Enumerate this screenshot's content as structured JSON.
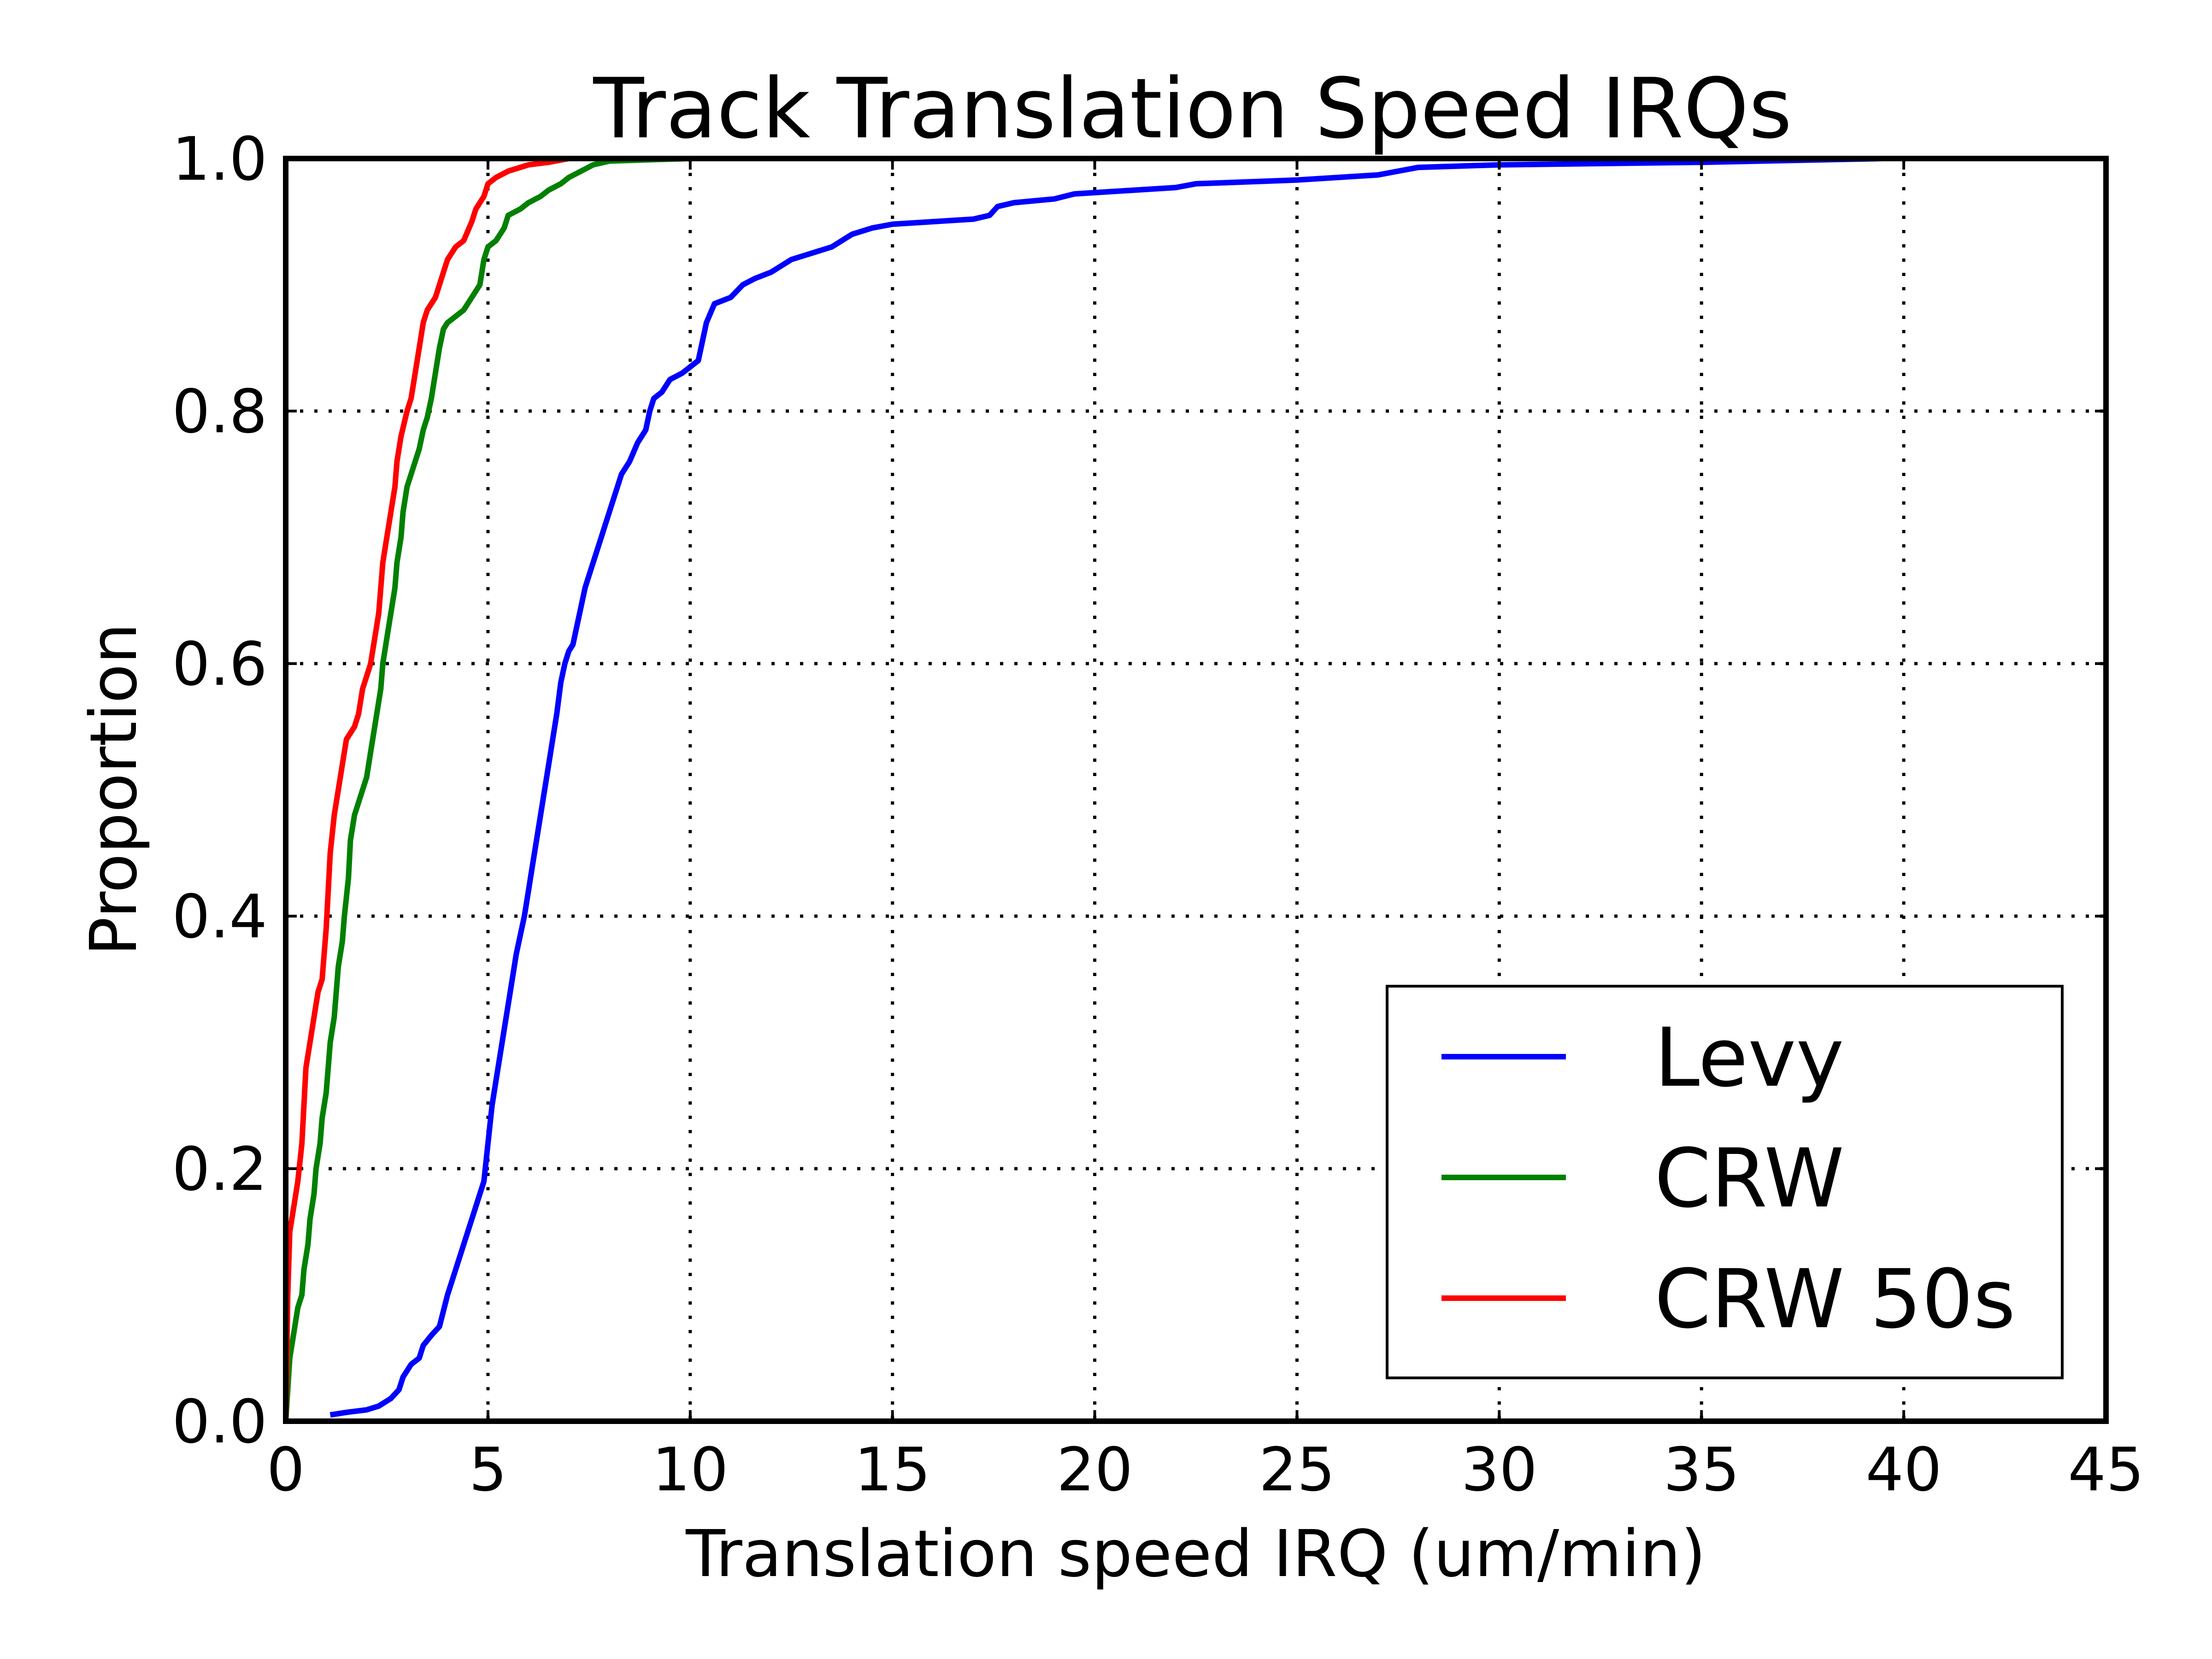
{
  "chart_data": {
    "type": "line",
    "title": "Track Translation Speed IRQs",
    "xlabel": "Translation speed IRQ (um/min)",
    "ylabel": "Proportion",
    "xlim": [
      0,
      45
    ],
    "ylim": [
      0,
      1.0
    ],
    "xticks": [
      0,
      5,
      10,
      15,
      20,
      25,
      30,
      35,
      40,
      45
    ],
    "xtick_labels": [
      "0",
      "5",
      "10",
      "15",
      "20",
      "25",
      "30",
      "35",
      "40",
      "45"
    ],
    "yticks": [
      0,
      0.2,
      0.4,
      0.6,
      0.8,
      1.0
    ],
    "ytick_labels": [
      "0.0",
      "0.2",
      "0.4",
      "0.6",
      "0.8",
      "1.0"
    ],
    "grid": true,
    "legend_position": "bottom-right",
    "series": [
      {
        "name": "Levy",
        "color": "#0000ff",
        "points": [
          [
            1.1,
            0.005
          ],
          [
            1.5,
            0.007
          ],
          [
            2.0,
            0.009
          ],
          [
            2.3,
            0.012
          ],
          [
            2.6,
            0.018
          ],
          [
            2.8,
            0.025
          ],
          [
            2.9,
            0.035
          ],
          [
            3.1,
            0.045
          ],
          [
            3.3,
            0.05
          ],
          [
            3.4,
            0.06
          ],
          [
            3.6,
            0.068
          ],
          [
            3.8,
            0.075
          ],
          [
            4.0,
            0.1
          ],
          [
            4.2,
            0.12
          ],
          [
            4.4,
            0.14
          ],
          [
            4.6,
            0.16
          ],
          [
            4.8,
            0.18
          ],
          [
            4.9,
            0.19
          ],
          [
            5.0,
            0.22
          ],
          [
            5.1,
            0.25
          ],
          [
            5.2,
            0.27
          ],
          [
            5.3,
            0.29
          ],
          [
            5.4,
            0.31
          ],
          [
            5.5,
            0.33
          ],
          [
            5.6,
            0.35
          ],
          [
            5.7,
            0.37
          ],
          [
            5.8,
            0.385
          ],
          [
            5.9,
            0.4
          ],
          [
            6.0,
            0.42
          ],
          [
            6.1,
            0.44
          ],
          [
            6.2,
            0.46
          ],
          [
            6.3,
            0.48
          ],
          [
            6.4,
            0.5
          ],
          [
            6.5,
            0.52
          ],
          [
            6.6,
            0.54
          ],
          [
            6.7,
            0.56
          ],
          [
            6.8,
            0.585
          ],
          [
            6.9,
            0.6
          ],
          [
            7.0,
            0.61
          ],
          [
            7.1,
            0.615
          ],
          [
            7.2,
            0.63
          ],
          [
            7.3,
            0.645
          ],
          [
            7.4,
            0.66
          ],
          [
            7.5,
            0.67
          ],
          [
            7.6,
            0.68
          ],
          [
            7.7,
            0.69
          ],
          [
            7.8,
            0.7
          ],
          [
            7.9,
            0.71
          ],
          [
            8.0,
            0.72
          ],
          [
            8.1,
            0.73
          ],
          [
            8.2,
            0.74
          ],
          [
            8.3,
            0.75
          ],
          [
            8.5,
            0.76
          ],
          [
            8.7,
            0.775
          ],
          [
            8.9,
            0.785
          ],
          [
            9.0,
            0.8
          ],
          [
            9.1,
            0.81
          ],
          [
            9.3,
            0.815
          ],
          [
            9.5,
            0.825
          ],
          [
            9.8,
            0.83
          ],
          [
            10.0,
            0.835
          ],
          [
            10.2,
            0.84
          ],
          [
            10.4,
            0.87
          ],
          [
            10.6,
            0.885
          ],
          [
            11.0,
            0.89
          ],
          [
            11.3,
            0.9
          ],
          [
            11.6,
            0.905
          ],
          [
            12.0,
            0.91
          ],
          [
            12.5,
            0.92
          ],
          [
            13.0,
            0.925
          ],
          [
            13.5,
            0.93
          ],
          [
            14.0,
            0.94
          ],
          [
            14.5,
            0.945
          ],
          [
            15.0,
            0.948
          ],
          [
            16.0,
            0.95
          ],
          [
            17.0,
            0.952
          ],
          [
            17.4,
            0.955
          ],
          [
            17.6,
            0.962
          ],
          [
            18.0,
            0.965
          ],
          [
            19.0,
            0.968
          ],
          [
            19.5,
            0.972
          ],
          [
            21.0,
            0.975
          ],
          [
            22.0,
            0.977
          ],
          [
            22.5,
            0.98
          ],
          [
            25.0,
            0.983
          ],
          [
            27.0,
            0.987
          ],
          [
            28.0,
            0.993
          ],
          [
            30.0,
            0.995
          ],
          [
            35.0,
            0.997
          ],
          [
            39.5,
            1.0
          ]
        ]
      },
      {
        "name": "CRW",
        "color": "#008000",
        "points": [
          [
            0,
            0
          ],
          [
            0.1,
            0.05
          ],
          [
            0.2,
            0.07
          ],
          [
            0.3,
            0.09
          ],
          [
            0.4,
            0.1
          ],
          [
            0.45,
            0.12
          ],
          [
            0.55,
            0.14
          ],
          [
            0.6,
            0.16
          ],
          [
            0.7,
            0.18
          ],
          [
            0.75,
            0.2
          ],
          [
            0.85,
            0.22
          ],
          [
            0.9,
            0.24
          ],
          [
            1.0,
            0.26
          ],
          [
            1.05,
            0.28
          ],
          [
            1.1,
            0.3
          ],
          [
            1.2,
            0.32
          ],
          [
            1.25,
            0.34
          ],
          [
            1.3,
            0.36
          ],
          [
            1.4,
            0.38
          ],
          [
            1.45,
            0.4
          ],
          [
            1.55,
            0.43
          ],
          [
            1.6,
            0.46
          ],
          [
            1.7,
            0.48
          ],
          [
            1.8,
            0.49
          ],
          [
            1.9,
            0.5
          ],
          [
            2.0,
            0.51
          ],
          [
            2.1,
            0.53
          ],
          [
            2.2,
            0.55
          ],
          [
            2.3,
            0.57
          ],
          [
            2.35,
            0.58
          ],
          [
            2.4,
            0.6
          ],
          [
            2.5,
            0.62
          ],
          [
            2.6,
            0.64
          ],
          [
            2.7,
            0.66
          ],
          [
            2.75,
            0.68
          ],
          [
            2.85,
            0.7
          ],
          [
            2.9,
            0.72
          ],
          [
            3.0,
            0.74
          ],
          [
            3.1,
            0.75
          ],
          [
            3.2,
            0.76
          ],
          [
            3.3,
            0.77
          ],
          [
            3.4,
            0.785
          ],
          [
            3.5,
            0.795
          ],
          [
            3.6,
            0.81
          ],
          [
            3.7,
            0.83
          ],
          [
            3.8,
            0.85
          ],
          [
            3.9,
            0.865
          ],
          [
            4.0,
            0.87
          ],
          [
            4.2,
            0.875
          ],
          [
            4.4,
            0.88
          ],
          [
            4.6,
            0.89
          ],
          [
            4.8,
            0.9
          ],
          [
            4.9,
            0.92
          ],
          [
            5.0,
            0.93
          ],
          [
            5.2,
            0.935
          ],
          [
            5.4,
            0.945
          ],
          [
            5.5,
            0.955
          ],
          [
            5.8,
            0.96
          ],
          [
            6.0,
            0.965
          ],
          [
            6.3,
            0.97
          ],
          [
            6.5,
            0.975
          ],
          [
            6.8,
            0.98
          ],
          [
            7.0,
            0.985
          ],
          [
            7.3,
            0.99
          ],
          [
            7.6,
            0.995
          ],
          [
            8.0,
            0.998
          ],
          [
            10.0,
            1.0
          ]
        ]
      },
      {
        "name": "CRW 50s",
        "color": "#ff0000",
        "points": [
          [
            0,
            0
          ],
          [
            0.05,
            0.1
          ],
          [
            0.1,
            0.15
          ],
          [
            0.2,
            0.17
          ],
          [
            0.3,
            0.19
          ],
          [
            0.4,
            0.22
          ],
          [
            0.45,
            0.25
          ],
          [
            0.5,
            0.28
          ],
          [
            0.6,
            0.3
          ],
          [
            0.7,
            0.32
          ],
          [
            0.8,
            0.34
          ],
          [
            0.9,
            0.35
          ],
          [
            0.95,
            0.37
          ],
          [
            1.0,
            0.39
          ],
          [
            1.05,
            0.42
          ],
          [
            1.1,
            0.45
          ],
          [
            1.2,
            0.48
          ],
          [
            1.3,
            0.5
          ],
          [
            1.4,
            0.52
          ],
          [
            1.5,
            0.54
          ],
          [
            1.7,
            0.55
          ],
          [
            1.8,
            0.56
          ],
          [
            1.9,
            0.58
          ],
          [
            2.0,
            0.59
          ],
          [
            2.1,
            0.6
          ],
          [
            2.2,
            0.62
          ],
          [
            2.3,
            0.64
          ],
          [
            2.35,
            0.66
          ],
          [
            2.4,
            0.68
          ],
          [
            2.5,
            0.7
          ],
          [
            2.6,
            0.72
          ],
          [
            2.7,
            0.74
          ],
          [
            2.75,
            0.76
          ],
          [
            2.85,
            0.78
          ],
          [
            3.0,
            0.8
          ],
          [
            3.1,
            0.81
          ],
          [
            3.2,
            0.83
          ],
          [
            3.3,
            0.85
          ],
          [
            3.4,
            0.87
          ],
          [
            3.5,
            0.88
          ],
          [
            3.7,
            0.89
          ],
          [
            3.8,
            0.9
          ],
          [
            3.9,
            0.91
          ],
          [
            4.0,
            0.92
          ],
          [
            4.2,
            0.93
          ],
          [
            4.4,
            0.935
          ],
          [
            4.6,
            0.95
          ],
          [
            4.7,
            0.96
          ],
          [
            4.8,
            0.965
          ],
          [
            4.9,
            0.97
          ],
          [
            5.0,
            0.98
          ],
          [
            5.2,
            0.985
          ],
          [
            5.5,
            0.99
          ],
          [
            6.0,
            0.995
          ],
          [
            6.5,
            0.997
          ],
          [
            7.0,
            1.0
          ]
        ]
      }
    ]
  }
}
